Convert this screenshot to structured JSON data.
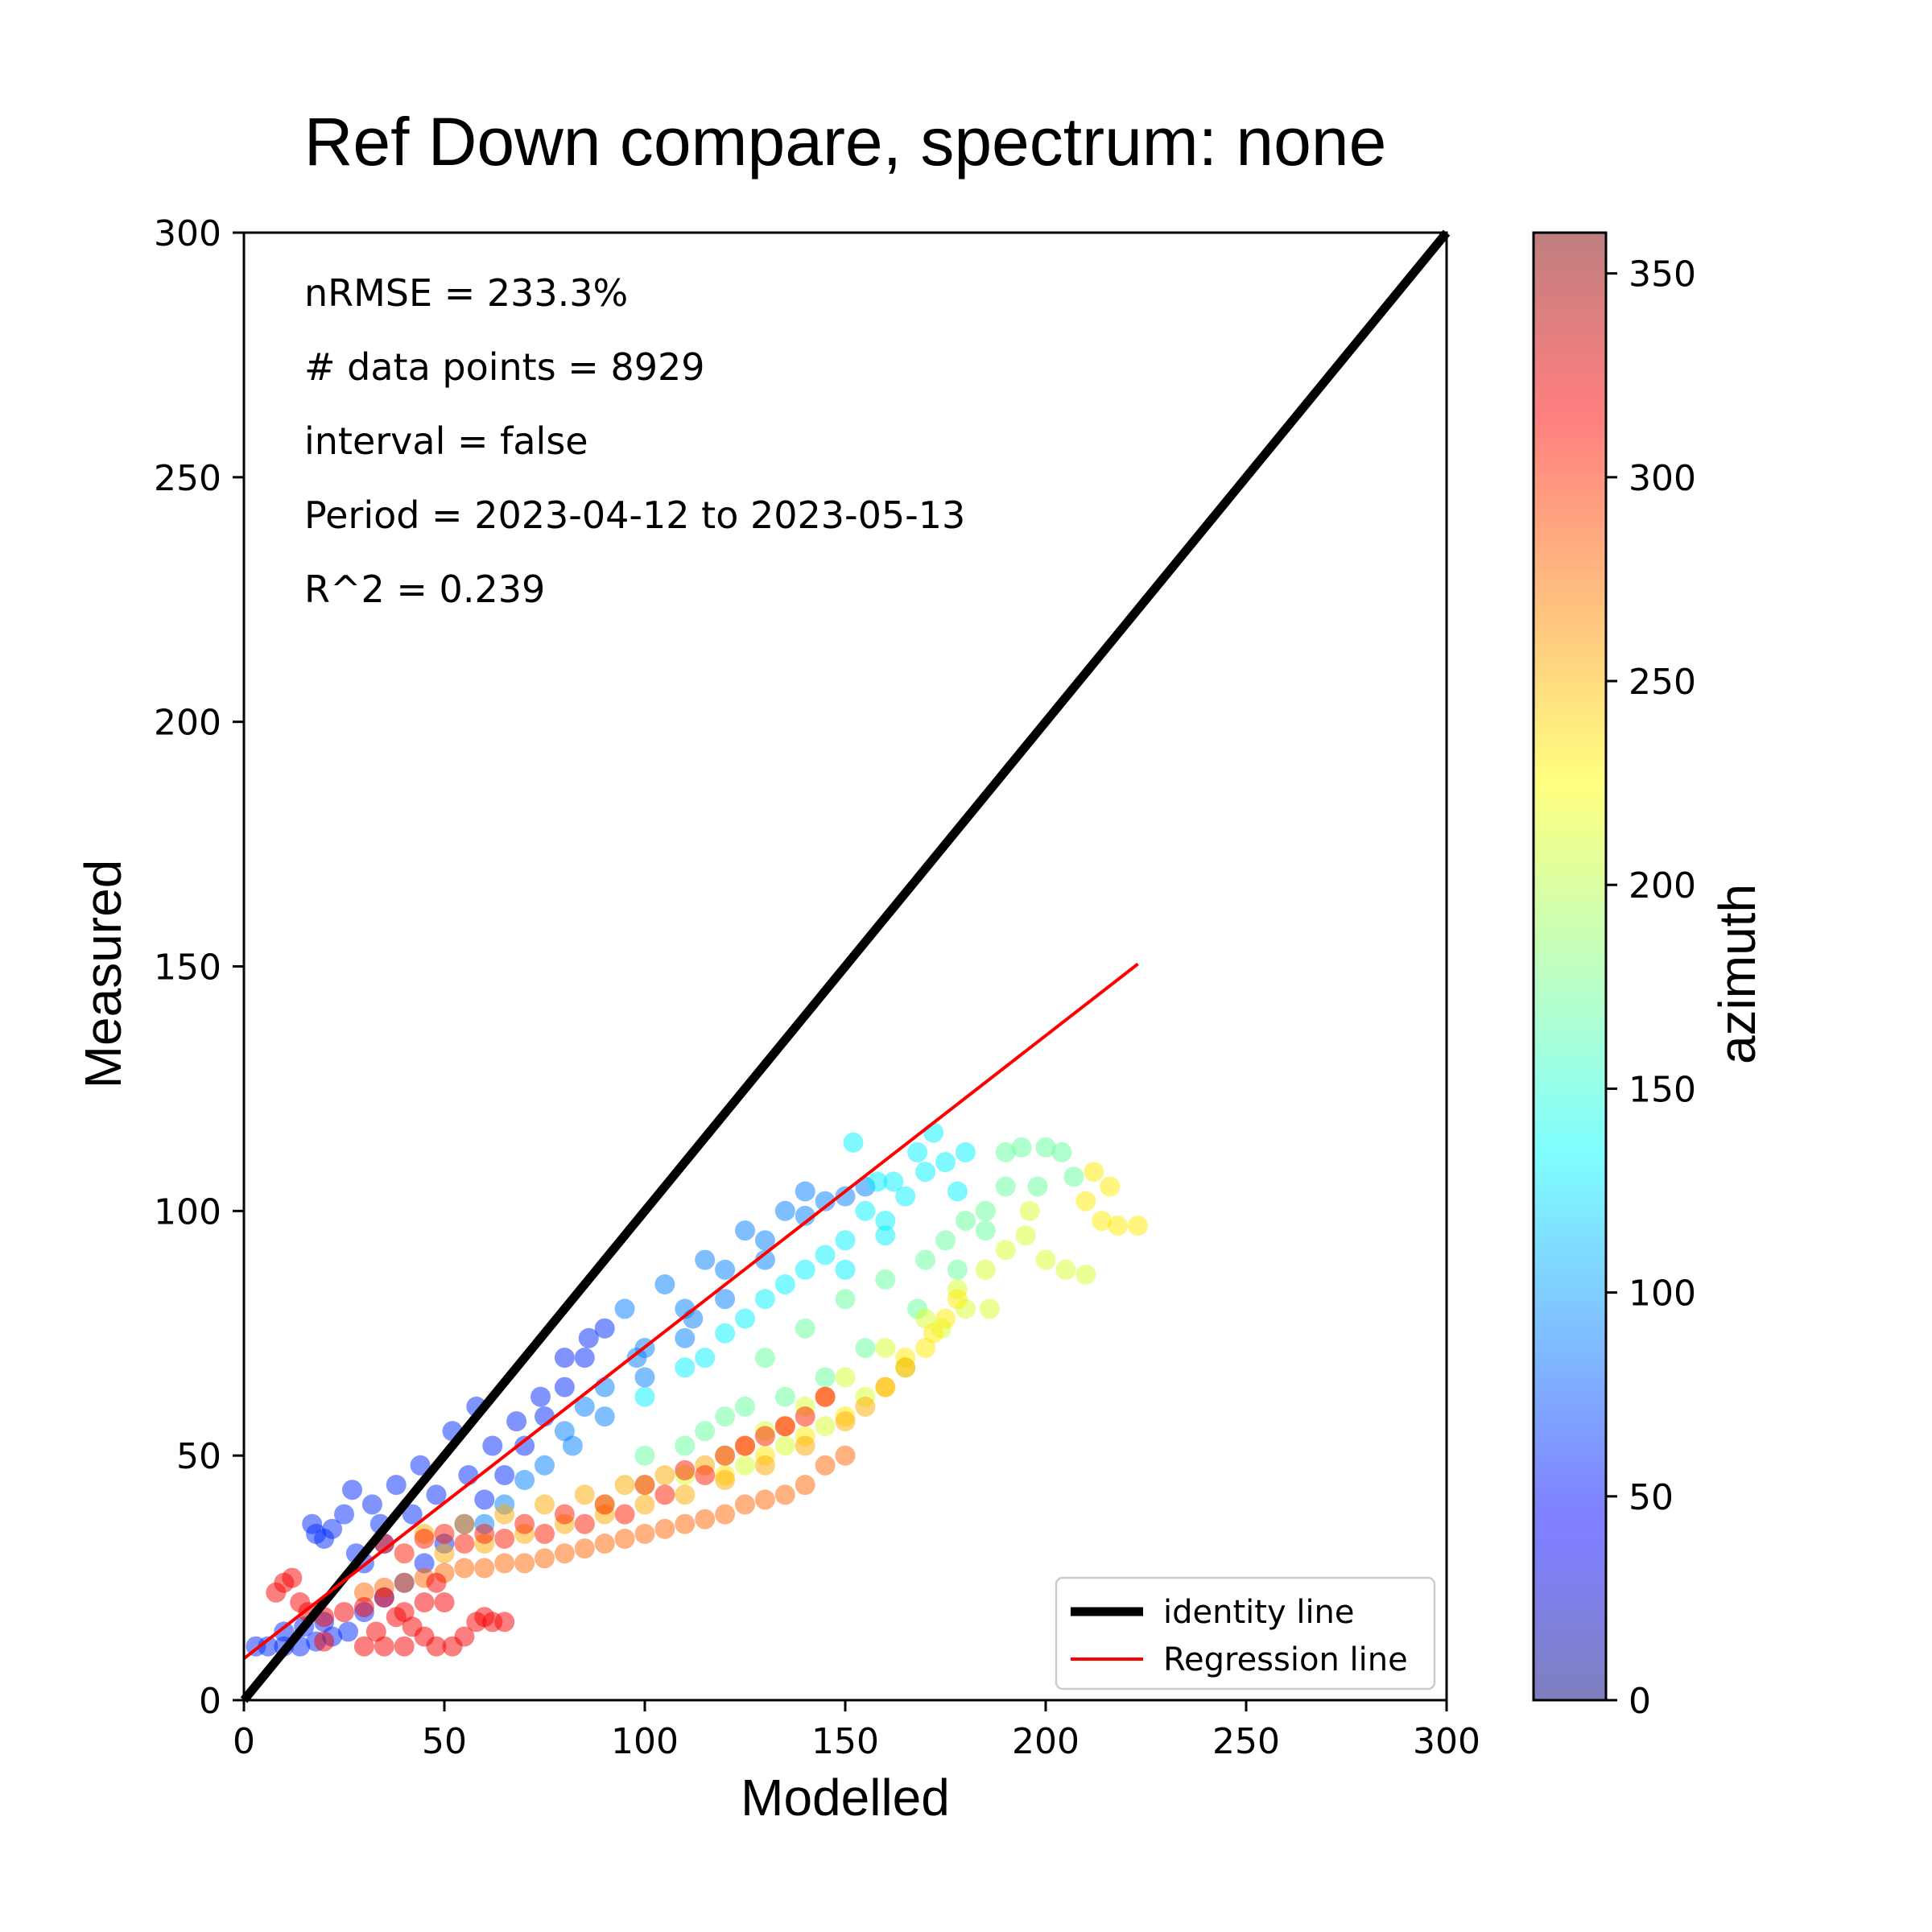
{
  "chart_data": {
    "type": "scatter",
    "title": "Ref Down compare, spectrum: none",
    "xlabel": "Modelled",
    "ylabel": "Measured",
    "xlim": [
      0,
      300
    ],
    "ylim": [
      0,
      300
    ],
    "xticks": [
      "0",
      "50",
      "100",
      "150",
      "200",
      "250",
      "300"
    ],
    "yticks": [
      "0",
      "50",
      "100",
      "150",
      "200",
      "250",
      "300"
    ],
    "grid": false,
    "annotations": [
      "nRMSE = 233.3%",
      "# data points = 8929",
      "interval = false",
      "Period = 2023-04-12 to 2023-05-13",
      "R^2 = 0.239"
    ],
    "legend": {
      "placement": "lower-right",
      "entries": [
        "identity line",
        "Regression line"
      ]
    },
    "identity_line": {
      "x": [
        0,
        300
      ],
      "y": [
        0,
        300
      ],
      "color": "#000000"
    },
    "regression_line": {
      "x": [
        0,
        223
      ],
      "y": [
        8.5,
        150.5
      ],
      "color": "#ff0000"
    },
    "colorbar": {
      "label": "azimuth",
      "range": [
        0,
        360
      ],
      "ticks": [
        "0",
        "50",
        "100",
        "150",
        "200",
        "250",
        "300",
        "350"
      ],
      "colormap": "jet"
    },
    "point_clusters": [
      {
        "name": "",
        "azimuth": 60,
        "points": [
          [
            3,
            11
          ],
          [
            6,
            11
          ],
          [
            10,
            11
          ],
          [
            14,
            11
          ],
          [
            18,
            12
          ],
          [
            22,
            13
          ],
          [
            26,
            14
          ],
          [
            10,
            14
          ],
          [
            15,
            15
          ],
          [
            20,
            16
          ],
          [
            30,
            18
          ],
          [
            35,
            21
          ],
          [
            40,
            24
          ],
          [
            45,
            28
          ],
          [
            50,
            32
          ],
          [
            55,
            36
          ],
          [
            60,
            41
          ],
          [
            65,
            46
          ],
          [
            70,
            52
          ],
          [
            75,
            58
          ],
          [
            80,
            64
          ],
          [
            85,
            70
          ],
          [
            90,
            76
          ],
          [
            17,
            36
          ],
          [
            18,
            34
          ],
          [
            20,
            33
          ],
          [
            22,
            35
          ],
          [
            27,
            43
          ],
          [
            25,
            38
          ],
          [
            32,
            40
          ],
          [
            38,
            44
          ],
          [
            44,
            48
          ],
          [
            52,
            55
          ],
          [
            58,
            60
          ],
          [
            30,
            28
          ],
          [
            35,
            32
          ],
          [
            42,
            38
          ],
          [
            48,
            42
          ],
          [
            56,
            46
          ],
          [
            62,
            52
          ],
          [
            68,
            57
          ],
          [
            74,
            62
          ],
          [
            80,
            70
          ],
          [
            86,
            74
          ],
          [
            28,
            30
          ],
          [
            34,
            36
          ]
        ]
      },
      {
        "name": "",
        "azimuth": 90,
        "points": [
          [
            60,
            36
          ],
          [
            70,
            45
          ],
          [
            80,
            55
          ],
          [
            90,
            64
          ],
          [
            100,
            72
          ],
          [
            110,
            80
          ],
          [
            120,
            88
          ],
          [
            130,
            94
          ],
          [
            140,
            99
          ],
          [
            150,
            103
          ],
          [
            95,
            80
          ],
          [
            105,
            85
          ],
          [
            115,
            90
          ],
          [
            125,
            96
          ],
          [
            135,
            100
          ],
          [
            85,
            60
          ],
          [
            100,
            66
          ],
          [
            110,
            74
          ],
          [
            120,
            82
          ],
          [
            130,
            90
          ],
          [
            75,
            48
          ],
          [
            90,
            58
          ],
          [
            140,
            104
          ],
          [
            145,
            102
          ],
          [
            155,
            105
          ],
          [
            65,
            40
          ],
          [
            82,
            52
          ],
          [
            98,
            70
          ],
          [
            112,
            78
          ]
        ]
      },
      {
        "name": "",
        "azimuth": 130,
        "points": [
          [
            120,
            75
          ],
          [
            130,
            82
          ],
          [
            140,
            88
          ],
          [
            150,
            94
          ],
          [
            160,
            98
          ],
          [
            165,
            103
          ],
          [
            170,
            108
          ],
          [
            175,
            110
          ],
          [
            110,
            68
          ],
          [
            125,
            78
          ],
          [
            135,
            85
          ],
          [
            145,
            91
          ],
          [
            155,
            100
          ],
          [
            162,
            106
          ],
          [
            168,
            112
          ],
          [
            172,
            116
          ],
          [
            152,
            114
          ],
          [
            158,
            106
          ],
          [
            180,
            112
          ],
          [
            178,
            104
          ],
          [
            100,
            62
          ],
          [
            115,
            70
          ],
          [
            150,
            88
          ],
          [
            160,
            95
          ]
        ]
      },
      {
        "name": "",
        "azimuth": 170,
        "points": [
          [
            130,
            70
          ],
          [
            140,
            76
          ],
          [
            150,
            82
          ],
          [
            160,
            86
          ],
          [
            170,
            90
          ],
          [
            175,
            94
          ],
          [
            180,
            98
          ],
          [
            185,
            100
          ],
          [
            190,
            112
          ],
          [
            194,
            113
          ],
          [
            200,
            113
          ],
          [
            204,
            112
          ],
          [
            207,
            107
          ],
          [
            190,
            105
          ],
          [
            185,
            96
          ],
          [
            178,
            88
          ],
          [
            168,
            80
          ],
          [
            155,
            72
          ],
          [
            145,
            66
          ],
          [
            135,
            62
          ],
          [
            120,
            58
          ],
          [
            110,
            52
          ],
          [
            100,
            50
          ],
          [
            115,
            55
          ],
          [
            125,
            60
          ],
          [
            198,
            105
          ]
        ]
      },
      {
        "name": "",
        "azimuth": 210,
        "points": [
          [
            110,
            46
          ],
          [
            120,
            50
          ],
          [
            130,
            55
          ],
          [
            140,
            60
          ],
          [
            150,
            66
          ],
          [
            160,
            72
          ],
          [
            170,
            78
          ],
          [
            178,
            84
          ],
          [
            185,
            88
          ],
          [
            190,
            92
          ],
          [
            195,
            95
          ],
          [
            200,
            90
          ],
          [
            205,
            88
          ],
          [
            210,
            87
          ],
          [
            196,
            100
          ],
          [
            174,
            76
          ],
          [
            180,
            80
          ],
          [
            165,
            68
          ],
          [
            155,
            62
          ],
          [
            145,
            56
          ],
          [
            135,
            52
          ],
          [
            125,
            48
          ],
          [
            90,
            40
          ],
          [
            100,
            44
          ],
          [
            186,
            80
          ]
        ]
      },
      {
        "name": "",
        "azimuth": 232,
        "points": [
          [
            210,
            102
          ],
          [
            214,
            98
          ],
          [
            218,
            97
          ],
          [
            223,
            97
          ],
          [
            212,
            108
          ],
          [
            216,
            105
          ],
          [
            140,
            54
          ],
          [
            150,
            58
          ],
          [
            160,
            64
          ],
          [
            170,
            72
          ],
          [
            175,
            78
          ],
          [
            120,
            46
          ],
          [
            130,
            50
          ],
          [
            165,
            70
          ],
          [
            172,
            75
          ],
          [
            178,
            82
          ]
        ]
      },
      {
        "name": "",
        "azimuth": 255,
        "points": [
          [
            50,
            30
          ],
          [
            60,
            32
          ],
          [
            70,
            34
          ],
          [
            80,
            36
          ],
          [
            90,
            38
          ],
          [
            100,
            40
          ],
          [
            110,
            42
          ],
          [
            120,
            45
          ],
          [
            130,
            48
          ],
          [
            140,
            52
          ],
          [
            150,
            57
          ],
          [
            155,
            60
          ],
          [
            160,
            64
          ],
          [
            165,
            68
          ],
          [
            55,
            36
          ],
          [
            65,
            38
          ],
          [
            75,
            40
          ],
          [
            85,
            42
          ],
          [
            95,
            44
          ],
          [
            105,
            46
          ],
          [
            115,
            48
          ],
          [
            125,
            52
          ],
          [
            135,
            56
          ],
          [
            145,
            62
          ],
          [
            45,
            34
          ]
        ]
      },
      {
        "name": "",
        "azimuth": 280,
        "points": [
          [
            30,
            22
          ],
          [
            40,
            24
          ],
          [
            50,
            26
          ],
          [
            60,
            27
          ],
          [
            70,
            28
          ],
          [
            80,
            30
          ],
          [
            90,
            32
          ],
          [
            100,
            34
          ],
          [
            110,
            36
          ],
          [
            120,
            38
          ],
          [
            130,
            41
          ],
          [
            140,
            44
          ],
          [
            150,
            50
          ],
          [
            145,
            48
          ],
          [
            135,
            42
          ],
          [
            125,
            40
          ],
          [
            115,
            37
          ],
          [
            105,
            35
          ],
          [
            95,
            33
          ],
          [
            85,
            31
          ],
          [
            75,
            29
          ],
          [
            65,
            28
          ],
          [
            55,
            27
          ],
          [
            45,
            25
          ],
          [
            35,
            23
          ]
        ]
      },
      {
        "name": "",
        "azimuth": 305,
        "points": [
          [
            40,
            30
          ],
          [
            50,
            34
          ],
          [
            60,
            34
          ],
          [
            70,
            36
          ],
          [
            80,
            38
          ],
          [
            90,
            40
          ],
          [
            100,
            44
          ],
          [
            110,
            47
          ],
          [
            120,
            50
          ],
          [
            130,
            54
          ],
          [
            140,
            58
          ],
          [
            145,
            62
          ],
          [
            35,
            32
          ],
          [
            45,
            33
          ],
          [
            55,
            32
          ],
          [
            65,
            33
          ],
          [
            75,
            34
          ],
          [
            85,
            36
          ],
          [
            95,
            38
          ],
          [
            105,
            42
          ],
          [
            115,
            46
          ],
          [
            125,
            52
          ],
          [
            135,
            56
          ]
        ]
      },
      {
        "name": "",
        "azimuth": 318,
        "points": [
          [
            8,
            22
          ],
          [
            10,
            24
          ],
          [
            12,
            25
          ],
          [
            14,
            20
          ],
          [
            16,
            18
          ],
          [
            20,
            17
          ],
          [
            25,
            18
          ],
          [
            30,
            19
          ],
          [
            35,
            21
          ],
          [
            40,
            18
          ],
          [
            42,
            15
          ],
          [
            45,
            13
          ],
          [
            48,
            11
          ],
          [
            52,
            11
          ],
          [
            55,
            13
          ],
          [
            58,
            16
          ],
          [
            60,
            17
          ],
          [
            62,
            16
          ],
          [
            65,
            16
          ],
          [
            30,
            11
          ],
          [
            35,
            11
          ],
          [
            40,
            11
          ],
          [
            20,
            12
          ],
          [
            45,
            20
          ],
          [
            48,
            24
          ],
          [
            50,
            20
          ],
          [
            38,
            17
          ],
          [
            33,
            14
          ]
        ]
      }
    ]
  }
}
